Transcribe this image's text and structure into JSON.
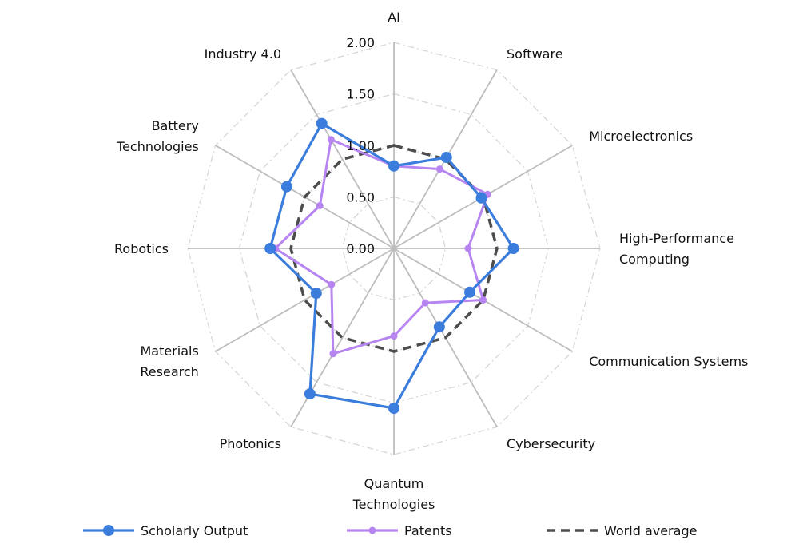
{
  "chart_data": {
    "type": "radar",
    "title": "",
    "categories": [
      "AI",
      "Software",
      "Microelectronics",
      "High-Performance Computing",
      "Communication Systems",
      "Cybersecurity",
      "Quantum Technologies",
      "Photonics",
      "Materials Research",
      "Robotics",
      "Battery Technologies",
      "Industry 4.0"
    ],
    "category_lines": [
      [
        "AI"
      ],
      [
        "Software"
      ],
      [
        "Microelectronics"
      ],
      [
        "High-Performance",
        "Computing"
      ],
      [
        "Communication Systems"
      ],
      [
        "Cybersecurity"
      ],
      [
        "Quantum",
        "Technologies"
      ],
      [
        "Photonics"
      ],
      [
        "Materials",
        "Research"
      ],
      [
        "Robotics"
      ],
      [
        "Battery",
        "Technologies"
      ],
      [
        "Industry 4.0"
      ]
    ],
    "ticks": [
      "0.00",
      "0.50",
      "1.00",
      "1.50",
      "2.00"
    ],
    "rlim": [
      0,
      2
    ],
    "grid": true,
    "legend_position": "bottom",
    "series": [
      {
        "name": "Scholarly Output",
        "color": "#3b7ddd",
        "values": [
          0.8,
          1.02,
          0.98,
          1.16,
          0.85,
          0.88,
          1.55,
          1.63,
          0.87,
          1.2,
          1.2,
          1.4
        ]
      },
      {
        "name": "Patents",
        "color": "#b785f2",
        "values": [
          0.8,
          0.89,
          1.05,
          0.72,
          1.0,
          0.61,
          0.85,
          1.18,
          0.7,
          1.15,
          0.83,
          1.22
        ]
      },
      {
        "name": "World average",
        "color": "#4d4d4d",
        "values": [
          1,
          1,
          1,
          1,
          1,
          1,
          1,
          1,
          1,
          1,
          1,
          1
        ]
      }
    ]
  }
}
